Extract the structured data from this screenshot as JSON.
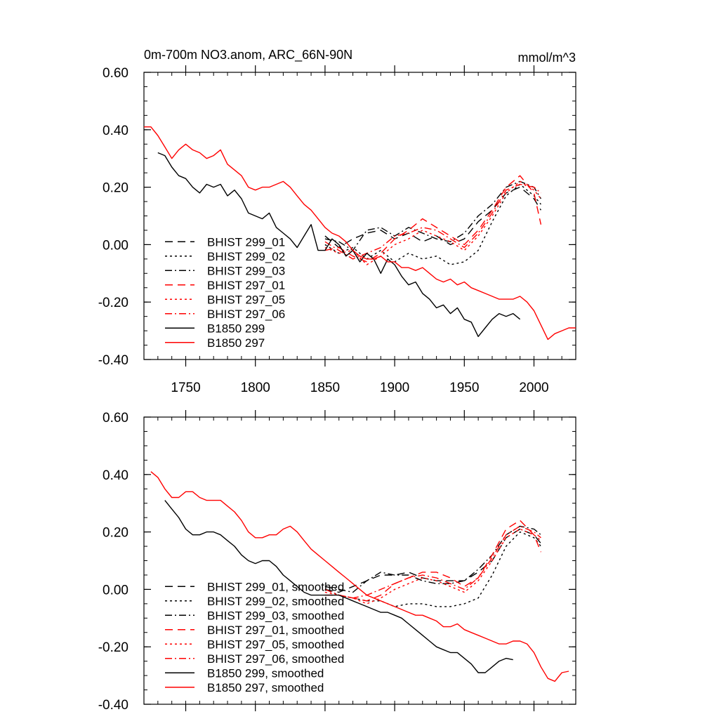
{
  "chart_data": [
    {
      "type": "line",
      "title": "0m-700m NO3.anom, ARC_66N-90N",
      "units": "mmol/m^3",
      "xlim": [
        1720,
        2030
      ],
      "ylim": [
        -0.4,
        0.6
      ],
      "xticks": [
        1750,
        1800,
        1850,
        1900,
        1950,
        2000
      ],
      "yticks": [
        -0.4,
        -0.2,
        0.0,
        0.2,
        0.4,
        0.6
      ],
      "ytick_labels": [
        "-0.40",
        "-0.20",
        "0.00",
        "0.20",
        "0.40",
        "0.60"
      ],
      "legend_position": "lower-left",
      "series": [
        {
          "name": "BHIST 299_01",
          "color": "#000000",
          "dash": "dashed",
          "x": [
            1850,
            1860,
            1870,
            1880,
            1890,
            1900,
            1910,
            1920,
            1930,
            1940,
            1950,
            1960,
            1970,
            1980,
            1990,
            2000,
            2005
          ],
          "y": [
            0.03,
            -0.01,
            0.02,
            0.04,
            0.05,
            0.02,
            0.04,
            0.01,
            0.03,
            0.0,
            0.02,
            0.08,
            0.12,
            0.18,
            0.2,
            0.16,
            0.12
          ]
        },
        {
          "name": "BHIST 299_02",
          "color": "#000000",
          "dash": "dotted",
          "x": [
            1850,
            1860,
            1870,
            1880,
            1890,
            1900,
            1910,
            1920,
            1930,
            1940,
            1950,
            1960,
            1970,
            1980,
            1990,
            2000,
            2005
          ],
          "y": [
            0.0,
            -0.03,
            -0.01,
            -0.05,
            -0.02,
            -0.06,
            -0.03,
            -0.05,
            -0.04,
            -0.07,
            -0.06,
            -0.02,
            0.08,
            0.17,
            0.21,
            0.17,
            0.14
          ]
        },
        {
          "name": "BHIST 299_03",
          "color": "#000000",
          "dash": "dashdot",
          "x": [
            1850,
            1860,
            1870,
            1880,
            1890,
            1900,
            1910,
            1920,
            1930,
            1940,
            1950,
            1960,
            1970,
            1980,
            1990,
            2000,
            2005
          ],
          "y": [
            0.02,
            0.01,
            -0.02,
            0.05,
            0.06,
            0.03,
            0.06,
            0.04,
            0.02,
            0.01,
            0.04,
            0.1,
            0.14,
            0.2,
            0.22,
            0.2,
            0.16
          ]
        },
        {
          "name": "BHIST 297_01",
          "color": "#ff0000",
          "dash": "dashed",
          "x": [
            1850,
            1860,
            1870,
            1880,
            1890,
            1900,
            1910,
            1920,
            1930,
            1940,
            1950,
            1960,
            1970,
            1980,
            1990,
            2000,
            2005
          ],
          "y": [
            -0.02,
            -0.01,
            -0.04,
            -0.06,
            -0.03,
            0.02,
            0.05,
            0.09,
            0.06,
            0.03,
            0.0,
            0.05,
            0.12,
            0.2,
            0.24,
            0.18,
            0.07
          ]
        },
        {
          "name": "BHIST 297_05",
          "color": "#ff0000",
          "dash": "dotted",
          "x": [
            1850,
            1860,
            1870,
            1880,
            1890,
            1900,
            1910,
            1920,
            1930,
            1940,
            1950,
            1960,
            1970,
            1980,
            1990,
            2000,
            2005
          ],
          "y": [
            -0.01,
            -0.03,
            -0.02,
            -0.07,
            -0.04,
            0.0,
            0.02,
            0.05,
            0.03,
            0.01,
            -0.02,
            0.03,
            0.1,
            0.18,
            0.22,
            0.19,
            0.16
          ]
        },
        {
          "name": "BHIST 297_06",
          "color": "#ff0000",
          "dash": "dashdot",
          "x": [
            1850,
            1860,
            1870,
            1880,
            1890,
            1900,
            1910,
            1920,
            1930,
            1940,
            1950,
            1960,
            1970,
            1980,
            1990,
            2000,
            2005
          ],
          "y": [
            0.01,
            -0.02,
            -0.05,
            -0.03,
            -0.01,
            0.03,
            0.04,
            0.06,
            0.05,
            0.02,
            -0.01,
            0.04,
            0.11,
            0.19,
            0.21,
            0.2,
            0.18
          ]
        },
        {
          "name": "B1850 299",
          "color": "#000000",
          "dash": "solid",
          "x": [
            1730,
            1735,
            1740,
            1745,
            1750,
            1755,
            1760,
            1765,
            1770,
            1775,
            1780,
            1785,
            1790,
            1795,
            1800,
            1805,
            1810,
            1815,
            1820,
            1825,
            1830,
            1835,
            1840,
            1845,
            1850,
            1855,
            1860,
            1865,
            1870,
            1875,
            1880,
            1885,
            1890,
            1895,
            1900,
            1905,
            1910,
            1915,
            1920,
            1925,
            1930,
            1935,
            1940,
            1945,
            1950,
            1955,
            1960,
            1965,
            1970,
            1975,
            1980,
            1985,
            1990
          ],
          "y": [
            0.32,
            0.31,
            0.27,
            0.24,
            0.23,
            0.2,
            0.18,
            0.21,
            0.2,
            0.21,
            0.17,
            0.19,
            0.16,
            0.11,
            0.1,
            0.09,
            0.11,
            0.06,
            0.04,
            0.02,
            -0.01,
            0.03,
            0.07,
            -0.02,
            -0.02,
            0.02,
            0.0,
            -0.04,
            -0.02,
            -0.06,
            -0.03,
            -0.05,
            -0.1,
            -0.05,
            -0.07,
            -0.11,
            -0.14,
            -0.13,
            -0.17,
            -0.19,
            -0.22,
            -0.21,
            -0.24,
            -0.22,
            -0.26,
            -0.27,
            -0.32,
            -0.29,
            -0.26,
            -0.24,
            -0.25,
            -0.24,
            -0.26
          ]
        },
        {
          "name": "B1850 297",
          "color": "#ff0000",
          "dash": "solid",
          "x": [
            1720,
            1725,
            1730,
            1735,
            1740,
            1745,
            1750,
            1755,
            1760,
            1765,
            1770,
            1775,
            1780,
            1785,
            1790,
            1795,
            1800,
            1805,
            1810,
            1815,
            1820,
            1825,
            1830,
            1835,
            1840,
            1845,
            1850,
            1855,
            1860,
            1865,
            1870,
            1875,
            1880,
            1885,
            1890,
            1895,
            1900,
            1905,
            1910,
            1915,
            1920,
            1925,
            1930,
            1935,
            1940,
            1945,
            1950,
            1955,
            1960,
            1965,
            1970,
            1975,
            1980,
            1985,
            1990,
            1995,
            2000,
            2005,
            2010,
            2015,
            2020,
            2025,
            2030
          ],
          "y": [
            0.41,
            0.41,
            0.38,
            0.34,
            0.3,
            0.33,
            0.35,
            0.33,
            0.32,
            0.3,
            0.31,
            0.33,
            0.28,
            0.26,
            0.24,
            0.2,
            0.19,
            0.2,
            0.2,
            0.21,
            0.22,
            0.2,
            0.17,
            0.14,
            0.12,
            0.09,
            0.06,
            0.04,
            0.03,
            0.01,
            -0.02,
            -0.04,
            -0.05,
            -0.05,
            -0.04,
            -0.06,
            -0.06,
            -0.08,
            -0.08,
            -0.09,
            -0.08,
            -0.1,
            -0.12,
            -0.13,
            -0.12,
            -0.14,
            -0.13,
            -0.15,
            -0.16,
            -0.17,
            -0.18,
            -0.19,
            -0.19,
            -0.19,
            -0.18,
            -0.2,
            -0.23,
            -0.28,
            -0.33,
            -0.31,
            -0.3,
            -0.29,
            -0.29
          ]
        }
      ]
    },
    {
      "type": "line",
      "title": "",
      "xlim": [
        1720,
        2030
      ],
      "ylim": [
        -0.4,
        0.6
      ],
      "xticks": [
        1750,
        1800,
        1850,
        1900,
        1950,
        2000
      ],
      "yticks": [
        -0.4,
        -0.2,
        0.0,
        0.2,
        0.4,
        0.6
      ],
      "ytick_labels": [
        "-0.40",
        "-0.20",
        "0.00",
        "0.20",
        "0.40",
        "0.60"
      ],
      "legend_position": "lower-left",
      "series": [
        {
          "name": "BHIST 299_01, smoothed",
          "color": "#000000",
          "dash": "dashed",
          "x": [
            1850,
            1860,
            1870,
            1880,
            1890,
            1900,
            1910,
            1920,
            1930,
            1940,
            1950,
            1960,
            1970,
            1980,
            1990,
            2000,
            2005
          ],
          "y": [
            0.0,
            -0.01,
            0.01,
            0.03,
            0.05,
            0.05,
            0.06,
            0.04,
            0.03,
            0.03,
            0.03,
            0.06,
            0.1,
            0.18,
            0.21,
            0.19,
            0.16
          ]
        },
        {
          "name": "BHIST 299_02, smoothed",
          "color": "#000000",
          "dash": "dotted",
          "x": [
            1850,
            1860,
            1870,
            1880,
            1890,
            1900,
            1910,
            1920,
            1930,
            1940,
            1950,
            1960,
            1970,
            1980,
            1990,
            2000,
            2005
          ],
          "y": [
            0.0,
            -0.02,
            -0.03,
            -0.04,
            -0.04,
            -0.06,
            -0.05,
            -0.05,
            -0.06,
            -0.06,
            -0.05,
            -0.03,
            0.05,
            0.15,
            0.2,
            0.18,
            0.15
          ]
        },
        {
          "name": "BHIST 299_03, smoothed",
          "color": "#000000",
          "dash": "dashdot",
          "x": [
            1850,
            1860,
            1870,
            1880,
            1890,
            1900,
            1910,
            1920,
            1930,
            1940,
            1950,
            1960,
            1970,
            1980,
            1990,
            2000,
            2005
          ],
          "y": [
            0.01,
            0.0,
            -0.01,
            0.03,
            0.06,
            0.05,
            0.05,
            0.03,
            0.02,
            0.02,
            0.03,
            0.07,
            0.12,
            0.19,
            0.22,
            0.21,
            0.19
          ]
        },
        {
          "name": "BHIST 297_01, smoothed",
          "color": "#ff0000",
          "dash": "dashed",
          "x": [
            1850,
            1860,
            1870,
            1880,
            1890,
            1900,
            1910,
            1920,
            1930,
            1940,
            1950,
            1960,
            1970,
            1980,
            1990,
            2000,
            2005
          ],
          "y": [
            -0.02,
            -0.02,
            -0.03,
            -0.04,
            -0.02,
            0.02,
            0.04,
            0.06,
            0.06,
            0.04,
            0.01,
            0.04,
            0.12,
            0.21,
            0.24,
            0.19,
            0.13
          ]
        },
        {
          "name": "BHIST 297_05, smoothed",
          "color": "#ff0000",
          "dash": "dotted",
          "x": [
            1850,
            1860,
            1870,
            1880,
            1890,
            1900,
            1910,
            1920,
            1930,
            1940,
            1950,
            1960,
            1970,
            1980,
            1990,
            2000,
            2005
          ],
          "y": [
            -0.01,
            -0.02,
            -0.03,
            -0.05,
            -0.03,
            0.0,
            0.02,
            0.04,
            0.03,
            0.01,
            -0.01,
            0.03,
            0.1,
            0.18,
            0.21,
            0.19,
            0.17
          ]
        },
        {
          "name": "BHIST 297_06, smoothed",
          "color": "#ff0000",
          "dash": "dashdot",
          "x": [
            1850,
            1860,
            1870,
            1880,
            1890,
            1900,
            1910,
            1920,
            1930,
            1940,
            1950,
            1960,
            1970,
            1980,
            1990,
            2000,
            2005
          ],
          "y": [
            0.0,
            -0.02,
            -0.03,
            -0.02,
            0.0,
            0.02,
            0.04,
            0.05,
            0.04,
            0.02,
            0.0,
            0.04,
            0.11,
            0.19,
            0.22,
            0.2,
            0.18
          ]
        },
        {
          "name": "B1850 299, smoothed",
          "color": "#000000",
          "dash": "solid",
          "x": [
            1735,
            1740,
            1745,
            1750,
            1755,
            1760,
            1765,
            1770,
            1775,
            1780,
            1785,
            1790,
            1795,
            1800,
            1805,
            1810,
            1815,
            1820,
            1825,
            1830,
            1835,
            1840,
            1845,
            1850,
            1855,
            1860,
            1865,
            1870,
            1875,
            1880,
            1885,
            1890,
            1895,
            1900,
            1905,
            1910,
            1915,
            1920,
            1925,
            1930,
            1935,
            1940,
            1945,
            1950,
            1955,
            1960,
            1965,
            1970,
            1975,
            1980,
            1985
          ],
          "y": [
            0.31,
            0.28,
            0.25,
            0.21,
            0.19,
            0.19,
            0.2,
            0.2,
            0.19,
            0.17,
            0.15,
            0.12,
            0.1,
            0.09,
            0.1,
            0.1,
            0.08,
            0.05,
            0.03,
            0.01,
            -0.01,
            -0.02,
            -0.02,
            -0.02,
            -0.02,
            -0.02,
            -0.03,
            -0.04,
            -0.05,
            -0.06,
            -0.07,
            -0.08,
            -0.08,
            -0.09,
            -0.1,
            -0.12,
            -0.14,
            -0.16,
            -0.18,
            -0.2,
            -0.21,
            -0.22,
            -0.22,
            -0.24,
            -0.26,
            -0.29,
            -0.29,
            -0.27,
            -0.25,
            -0.24,
            -0.245
          ]
        },
        {
          "name": "B1850 297, smoothed",
          "color": "#ff0000",
          "dash": "solid",
          "x": [
            1725,
            1730,
            1735,
            1740,
            1745,
            1750,
            1755,
            1760,
            1765,
            1770,
            1775,
            1780,
            1785,
            1790,
            1795,
            1800,
            1805,
            1810,
            1815,
            1820,
            1825,
            1830,
            1835,
            1840,
            1845,
            1850,
            1855,
            1860,
            1865,
            1870,
            1875,
            1880,
            1885,
            1890,
            1895,
            1900,
            1905,
            1910,
            1915,
            1920,
            1925,
            1930,
            1935,
            1940,
            1945,
            1950,
            1955,
            1960,
            1965,
            1970,
            1975,
            1980,
            1985,
            1990,
            1995,
            2000,
            2005,
            2010,
            2015,
            2020,
            2025
          ],
          "y": [
            0.41,
            0.39,
            0.35,
            0.32,
            0.32,
            0.34,
            0.34,
            0.32,
            0.31,
            0.31,
            0.31,
            0.29,
            0.27,
            0.24,
            0.2,
            0.18,
            0.18,
            0.19,
            0.19,
            0.21,
            0.22,
            0.2,
            0.17,
            0.14,
            0.12,
            0.1,
            0.08,
            0.06,
            0.04,
            0.02,
            0.0,
            -0.02,
            -0.03,
            -0.04,
            -0.05,
            -0.06,
            -0.07,
            -0.08,
            -0.09,
            -0.09,
            -0.1,
            -0.11,
            -0.13,
            -0.13,
            -0.12,
            -0.14,
            -0.15,
            -0.16,
            -0.17,
            -0.18,
            -0.19,
            -0.19,
            -0.18,
            -0.18,
            -0.19,
            -0.22,
            -0.27,
            -0.31,
            -0.32,
            -0.29,
            -0.285
          ]
        }
      ]
    }
  ]
}
